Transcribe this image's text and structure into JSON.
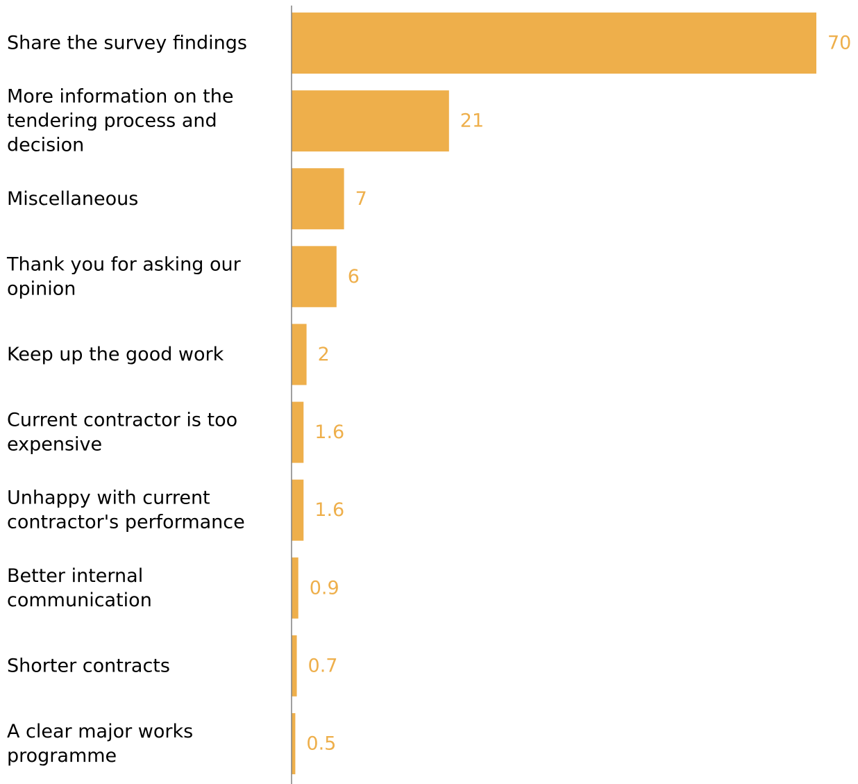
{
  "chart_data": {
    "type": "bar",
    "orientation": "horizontal",
    "categories": [
      "Share the survey findings",
      "More information on the tendering process and decision",
      "Miscellaneous",
      "Thank you for asking our opinion",
      "Keep up the good work",
      "Current contractor is too expensive",
      "Unhappy with current contractor's performance",
      "Better internal communication",
      "Shorter contracts",
      "A clear major works programme"
    ],
    "category_lines": [
      [
        "Share the survey findings"
      ],
      [
        "More information on the",
        "tendering process and",
        "decision"
      ],
      [
        "Miscellaneous"
      ],
      [
        "Thank you for asking our",
        "opinion"
      ],
      [
        "Keep up the good work"
      ],
      [
        "Current contractor is too",
        "expensive"
      ],
      [
        "Unhappy with current",
        "contractor's performance"
      ],
      [
        "Better internal",
        "communication"
      ],
      [
        "Shorter contracts"
      ],
      [
        "A clear major works",
        "programme"
      ]
    ],
    "values": [
      70,
      21,
      7,
      6,
      2,
      1.6,
      1.6,
      0.9,
      0.7,
      0.5
    ],
    "value_labels": [
      "70",
      "21",
      "7",
      "6",
      "2",
      "1.6",
      "1.6",
      "0.9",
      "0.7",
      "0.5"
    ],
    "xlim": [
      0,
      70
    ],
    "grid": false,
    "legend": "none",
    "title": "",
    "xlabel": "",
    "ylabel": "",
    "colors": {
      "bar": "#EEAF4B",
      "value_label": "#EEAF4B",
      "axis": "#808080",
      "text": "#000000"
    }
  }
}
